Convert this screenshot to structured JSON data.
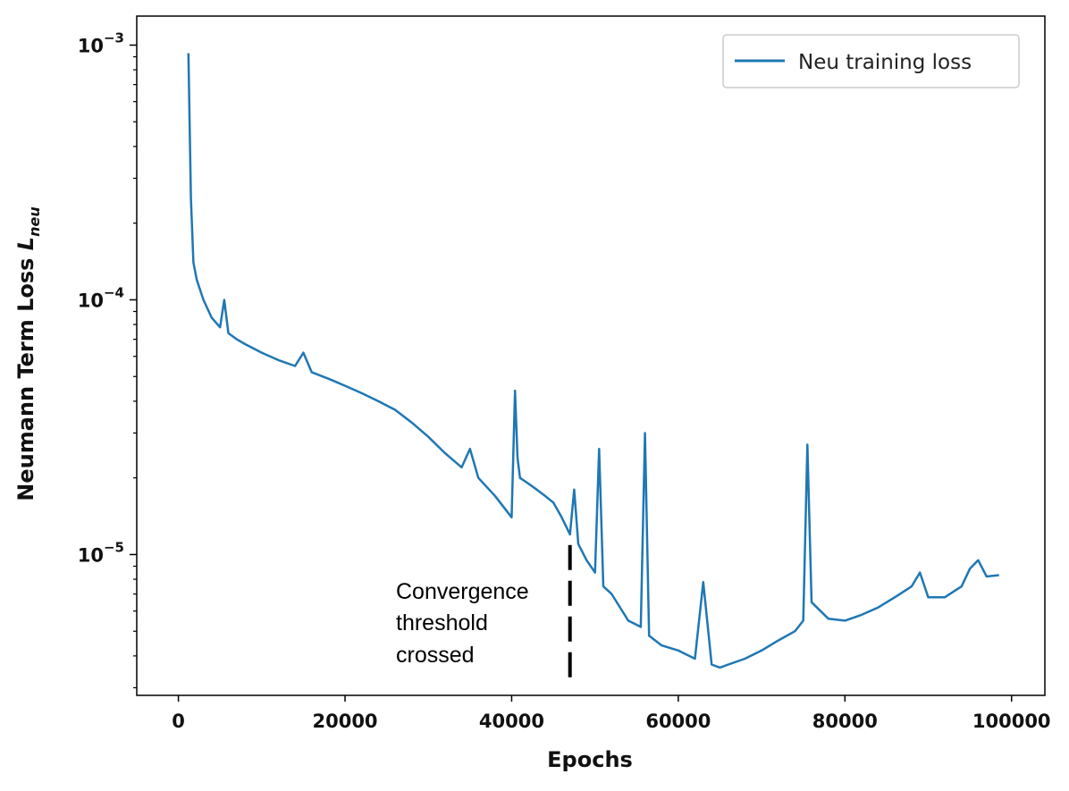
{
  "chart_data": {
    "type": "line",
    "xlabel": "Epochs",
    "ylabel_main": "Neumann Term Loss ",
    "ylabel_symbol": "L",
    "ylabel_subscript": "neu",
    "yscale": "log",
    "xlim": [
      -5000,
      104000
    ],
    "ylim": [
      2.8e-06,
      0.0013
    ],
    "x_ticks": [
      0,
      20000,
      40000,
      60000,
      80000,
      100000
    ],
    "x_tick_labels": [
      "0",
      "20000",
      "40000",
      "60000",
      "80000",
      "100000"
    ],
    "y_ticks": [
      {
        "value": 0.001,
        "base": "10",
        "exp": "−3"
      },
      {
        "value": 0.0001,
        "base": "10",
        "exp": "−4"
      },
      {
        "value": 1e-05,
        "base": "10",
        "exp": "−5"
      }
    ],
    "grid": false,
    "legend_position": "top-right",
    "series": [
      {
        "name": "Neu training loss",
        "color": "#1f77b4",
        "x": [
          1200,
          1500,
          1800,
          2200,
          3000,
          4000,
          5000,
          5500,
          6000,
          7000,
          8000,
          10000,
          12000,
          14000,
          15000,
          16000,
          18000,
          20000,
          22000,
          24000,
          26000,
          28000,
          30000,
          32000,
          34000,
          35000,
          36000,
          38000,
          40000,
          40400,
          40700,
          41000,
          42000,
          43000,
          44000,
          45000,
          46000,
          47000,
          47500,
          48000,
          49000,
          50000,
          50500,
          51000,
          52000,
          54000,
          55500,
          56000,
          56500,
          58000,
          60000,
          62000,
          63000,
          64000,
          65000,
          66000,
          68000,
          70000,
          72000,
          74000,
          75000,
          75500,
          76000,
          78000,
          80000,
          82000,
          84000,
          86000,
          88000,
          89000,
          90000,
          92000,
          94000,
          95000,
          96000,
          97000,
          98500
        ],
        "y": [
          0.00093,
          0.00025,
          0.00014,
          0.00012,
          0.0001,
          8.5e-05,
          7.8e-05,
          0.0001,
          7.4e-05,
          7e-05,
          6.7e-05,
          6.2e-05,
          5.8e-05,
          5.5e-05,
          6.2e-05,
          5.2e-05,
          4.9e-05,
          4.6e-05,
          4.3e-05,
          4e-05,
          3.7e-05,
          3.3e-05,
          2.9e-05,
          2.5e-05,
          2.2e-05,
          2.6e-05,
          2e-05,
          1.7e-05,
          1.4e-05,
          4.4e-05,
          2.4e-05,
          2e-05,
          1.9e-05,
          1.8e-05,
          1.7e-05,
          1.6e-05,
          1.4e-05,
          1.2e-05,
          1.8e-05,
          1.1e-05,
          9.5e-06,
          8.5e-06,
          2.6e-05,
          7.5e-06,
          7e-06,
          5.5e-06,
          5.2e-06,
          3e-05,
          4.8e-06,
          4.4e-06,
          4.2e-06,
          3.9e-06,
          7.8e-06,
          3.7e-06,
          3.6e-06,
          3.7e-06,
          3.9e-06,
          4.2e-06,
          4.6e-06,
          5e-06,
          5.5e-06,
          2.7e-05,
          6.5e-06,
          5.6e-06,
          5.5e-06,
          5.8e-06,
          6.2e-06,
          6.8e-06,
          7.5e-06,
          8.5e-06,
          6.8e-06,
          6.8e-06,
          7.5e-06,
          8.8e-06,
          9.5e-06,
          8.2e-06,
          8.3e-06
        ]
      }
    ],
    "annotation": {
      "lines": [
        "Convergence",
        "threshold",
        "crossed"
      ],
      "x": 47000,
      "y_from": 1.09e-05,
      "y_to": 3.1e-06
    }
  }
}
